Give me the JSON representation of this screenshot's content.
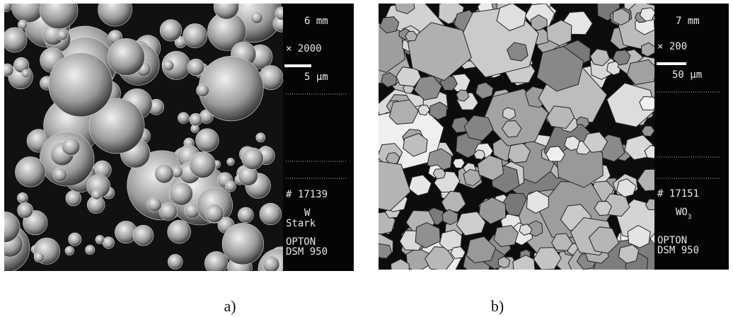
{
  "panels": [
    {
      "caption": "a)",
      "working_distance": "6 mm",
      "magnification": "× 2000",
      "scale_bar": "5 µm",
      "number": "# 17139",
      "sample": [
        "W",
        "Stark"
      ],
      "instrument": [
        "OPTON",
        "DSM 950"
      ]
    },
    {
      "caption": "b)",
      "working_distance": "7 mm",
      "magnification": "× 200",
      "scale_bar": "50 µm",
      "number": "# 17151",
      "formula": {
        "base": "WO",
        "subscript": "3"
      },
      "instrument": [
        "OPTON",
        "DSM 950"
      ]
    }
  ]
}
